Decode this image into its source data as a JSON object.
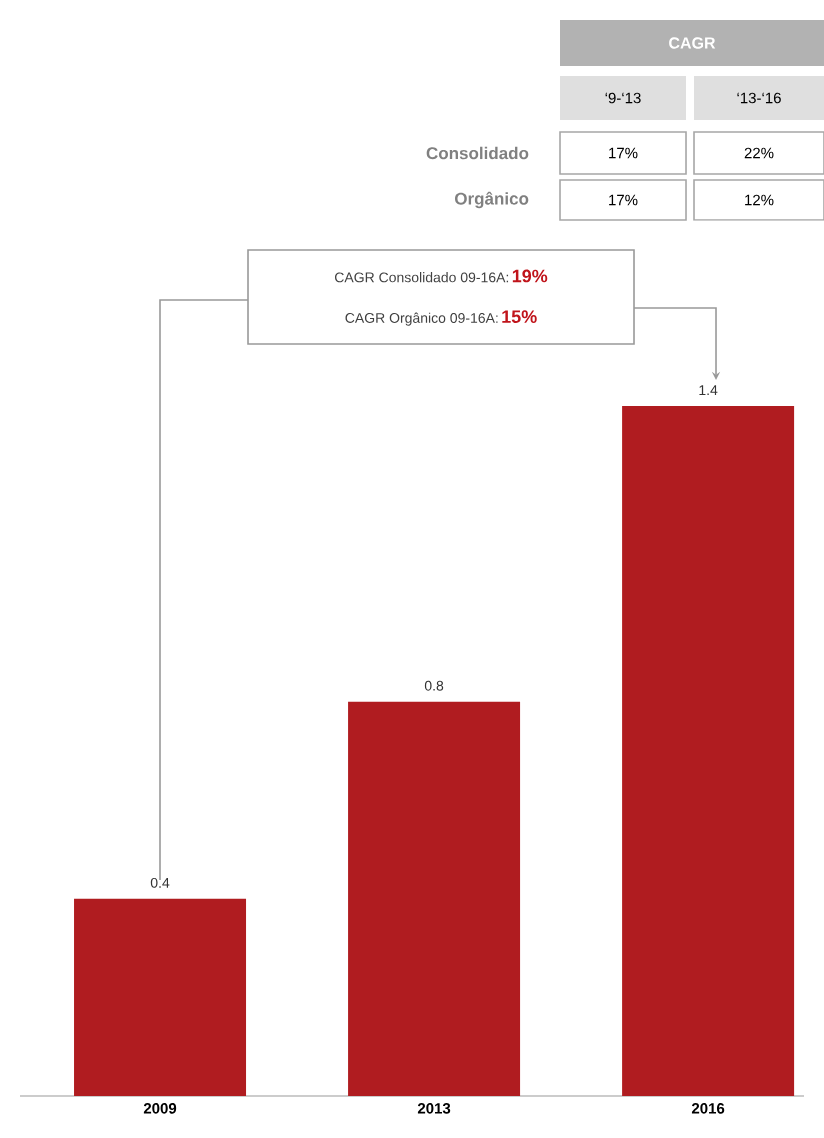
{
  "chart_data": {
    "type": "bar",
    "categories": [
      "2009",
      "2013",
      "2016"
    ],
    "values": [
      0.4,
      0.8,
      1.4
    ],
    "color": "#b01c20",
    "data_labels": true,
    "annotations": [
      "CAGR",
      "‘9-‘13",
      "‘13-‘16",
      "Consolidado",
      "17%",
      "22%",
      "Orgânico",
      "17%",
      "12%",
      "CAGR Consolidado 09-16A:",
      "19%",
      "CAGR Orgânico 09-16A:",
      "15%"
    ]
  }
}
